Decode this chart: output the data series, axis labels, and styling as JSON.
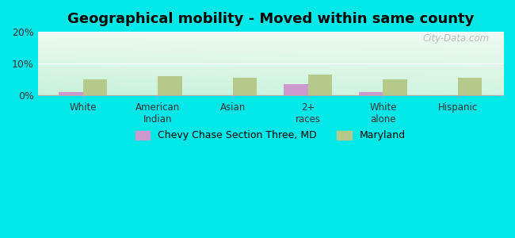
{
  "title": "Geographical mobility - Moved within same county",
  "categories": [
    "White",
    "American\nIndian",
    "Asian",
    "2+\nraces",
    "White\nalone",
    "Hispanic"
  ],
  "chevy_chase_values": [
    1.0,
    0.0,
    0.0,
    3.5,
    1.0,
    0.0
  ],
  "maryland_values": [
    5.0,
    6.0,
    5.5,
    6.5,
    5.0,
    5.5
  ],
  "chevy_chase_color": "#cc99cc",
  "maryland_color": "#b5c98a",
  "ylim": [
    0,
    20
  ],
  "yticks": [
    0,
    10,
    20
  ],
  "ytick_labels": [
    "0%",
    "10%",
    "20%"
  ],
  "legend_label_1": "Chevy Chase Section Three, MD",
  "legend_label_2": "Maryland",
  "title_fontsize": 13,
  "outer_background": "#00e8e8",
  "bar_width": 0.32,
  "watermark": "City-Data.com"
}
